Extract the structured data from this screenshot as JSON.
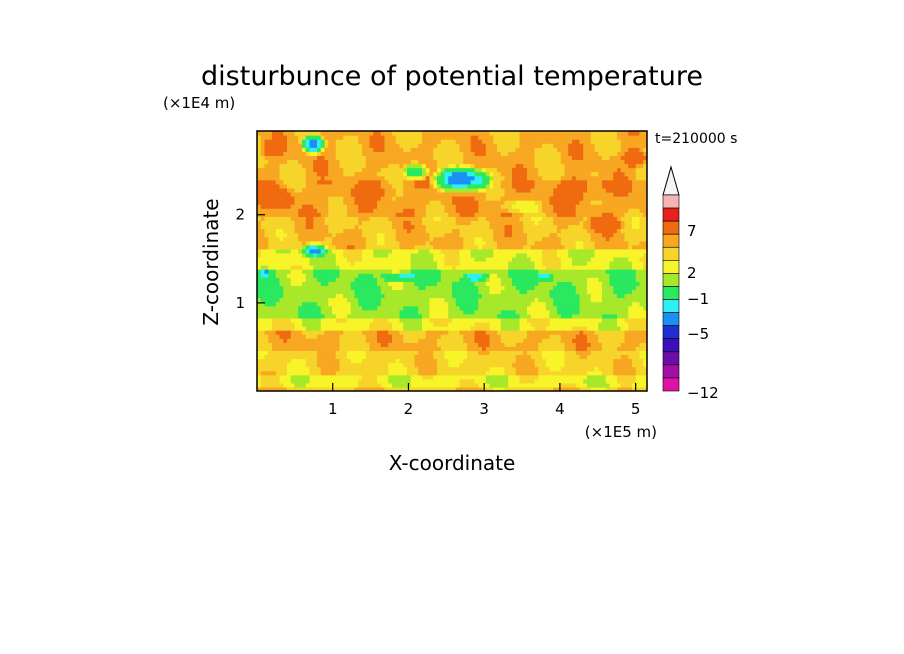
{
  "chart_data": {
    "type": "heatmap",
    "title": "disturbunce of potential temperature",
    "xlabel": "X-coordinate",
    "ylabel": "Z-coordinate",
    "x_unit": "(×1E5 m)",
    "y_unit": "(×1E4 m)",
    "time_label": "t=210000 s",
    "xlim": [
      0,
      5.15
    ],
    "ylim": [
      0,
      2.95
    ],
    "x_ticks": [
      "1",
      "2",
      "3",
      "4",
      "5"
    ],
    "y_ticks": [
      "1",
      "2"
    ],
    "colorbar": {
      "labels": [
        "7",
        "2",
        "−1",
        "−5",
        "−12"
      ],
      "colors": [
        "#f5f5f5",
        "#f8b4b4",
        "#e8201e",
        "#f06a10",
        "#f7a722",
        "#f6d42a",
        "#f7f429",
        "#a8e82a",
        "#2ae85f",
        "#2cf0f6",
        "#1c8ff5",
        "#1e2fd1",
        "#3a10b8",
        "#6b0da6",
        "#a50ea6",
        "#df12a8"
      ],
      "label_levels": [
        7,
        2,
        -1,
        -5,
        -12
      ],
      "extend": "max"
    },
    "field": {
      "bands": [
        {
          "z0": 0.0,
          "z1": 0.05,
          "value": 1.8
        },
        {
          "z0": 0.05,
          "z1": 0.2,
          "value": 0.5
        },
        {
          "z0": 0.2,
          "z1": 0.45,
          "value": 1.5
        },
        {
          "z0": 0.45,
          "z1": 0.7,
          "value": 2.2
        },
        {
          "z0": 0.7,
          "z1": 0.85,
          "value": 0.6
        },
        {
          "z0": 0.85,
          "z1": 1.05,
          "value": -0.6
        },
        {
          "z0": 1.05,
          "z1": 1.4,
          "value": -0.8
        },
        {
          "z0": 1.4,
          "z1": 1.6,
          "value": 0.3
        },
        {
          "z0": 1.6,
          "z1": 2.0,
          "value": 2.0
        },
        {
          "z0": 2.0,
          "z1": 2.4,
          "value": 2.6
        },
        {
          "z0": 2.4,
          "z1": 2.95,
          "value": 2.2
        }
      ],
      "blobs": [
        {
          "x": 0.75,
          "z": 2.8,
          "rx": 0.18,
          "rz": 0.12,
          "value": -5
        },
        {
          "x": 2.7,
          "z": 2.4,
          "rx": 0.45,
          "rz": 0.18,
          "value": -5
        },
        {
          "x": 2.1,
          "z": 2.5,
          "rx": 0.2,
          "rz": 0.12,
          "value": -3
        },
        {
          "x": 0.75,
          "z": 1.6,
          "rx": 0.2,
          "rz": 0.1,
          "value": -4
        },
        {
          "x": 1.9,
          "z": 1.3,
          "rx": 0.3,
          "rz": 0.06,
          "value": -4
        },
        {
          "x": 2.9,
          "z": 1.3,
          "rx": 0.2,
          "rz": 0.06,
          "value": -4
        },
        {
          "x": 3.8,
          "z": 1.3,
          "rx": 0.15,
          "rz": 0.06,
          "value": -4
        },
        {
          "x": 0.1,
          "z": 1.35,
          "rx": 0.08,
          "rz": 0.07,
          "value": -4
        },
        {
          "x": 0.3,
          "z": 2.2,
          "rx": 0.25,
          "rz": 0.15,
          "value": 4
        },
        {
          "x": 0.2,
          "z": 2.75,
          "rx": 0.2,
          "rz": 0.12,
          "value": 4
        },
        {
          "x": 4.3,
          "z": 2.3,
          "rx": 0.4,
          "rz": 0.18,
          "value": 4
        },
        {
          "x": 4.6,
          "z": 1.9,
          "rx": 0.3,
          "rz": 0.12,
          "value": 4
        },
        {
          "x": 5.0,
          "z": 2.65,
          "rx": 0.2,
          "rz": 0.12,
          "value": 5
        },
        {
          "x": 3.5,
          "z": 2.1,
          "rx": 0.3,
          "rz": 0.1,
          "value": 0.5
        },
        {
          "x": 1.6,
          "z": 2.3,
          "rx": 0.3,
          "rz": 0.15,
          "value": 3.5
        }
      ]
    }
  }
}
